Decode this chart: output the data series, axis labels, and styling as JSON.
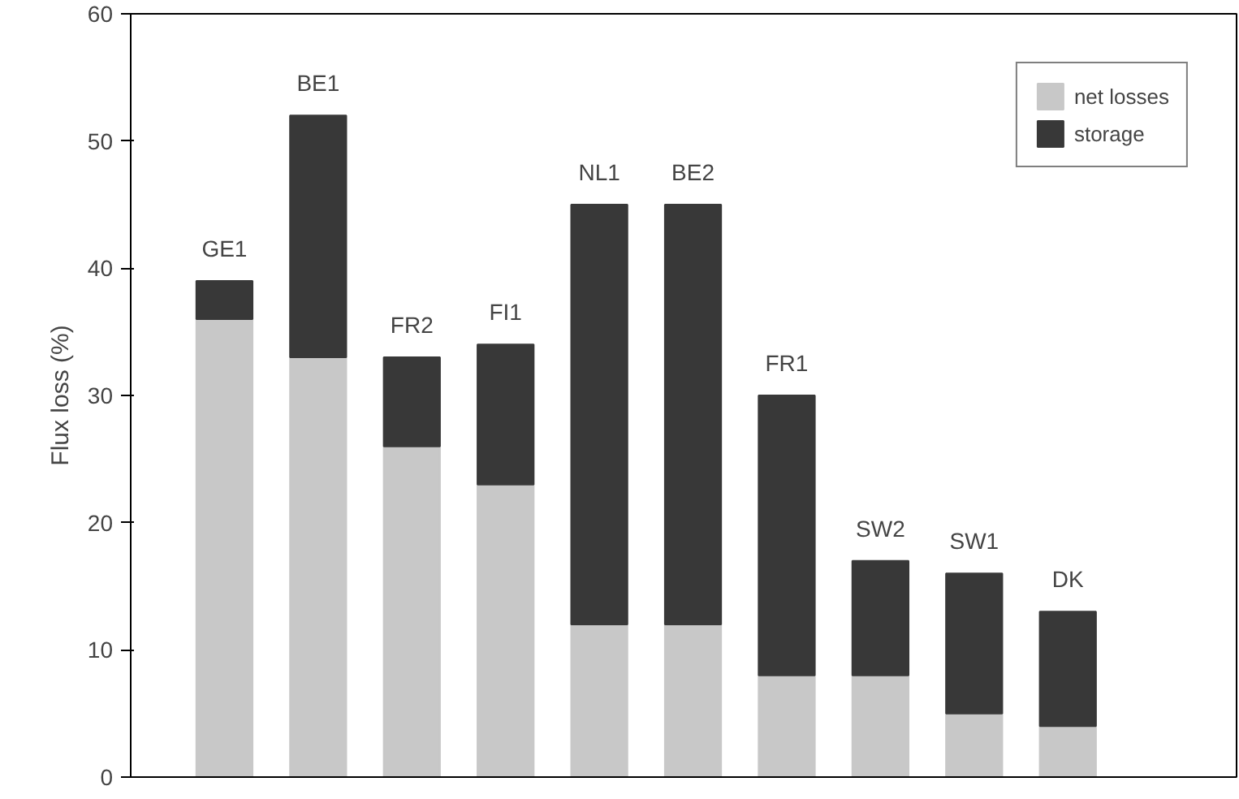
{
  "chart_data": {
    "type": "bar",
    "stacked": true,
    "ylabel": "Flux loss (%)",
    "categories": [
      "GE1",
      "BE1",
      "FR2",
      "FI1",
      "NL1",
      "BE2",
      "FR1",
      "SW2",
      "SW1",
      "DK"
    ],
    "series": [
      {
        "name": "net losses",
        "color": "#c8c8c8",
        "values": [
          36,
          33,
          26,
          23,
          12,
          12,
          8,
          8,
          5,
          4
        ]
      },
      {
        "name": "storage",
        "color": "#383838",
        "values": [
          3,
          19,
          7,
          11,
          33,
          33,
          22,
          9,
          11,
          9
        ]
      }
    ],
    "ylim": [
      0,
      60
    ],
    "yticks": [
      0,
      10,
      20,
      30,
      40,
      50,
      60
    ],
    "grid": false,
    "legend": "top right"
  }
}
